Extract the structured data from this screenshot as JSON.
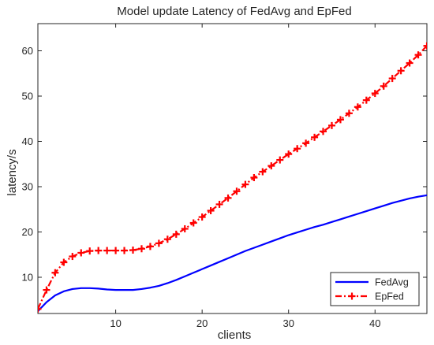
{
  "chart_data": {
    "type": "line",
    "title": "Model update Latency of FedAvg and EpFed",
    "xlabel": "clients",
    "ylabel": "latency/s",
    "xlim": [
      1,
      46
    ],
    "ylim": [
      2,
      66
    ],
    "xticks": [
      10,
      20,
      30,
      40
    ],
    "yticks": [
      10,
      20,
      30,
      40,
      50,
      60
    ],
    "grid": false,
    "legend_position": "bottom-right",
    "x": [
      1,
      2,
      3,
      4,
      5,
      6,
      7,
      8,
      9,
      10,
      11,
      12,
      13,
      14,
      15,
      16,
      17,
      18,
      19,
      20,
      21,
      22,
      23,
      24,
      25,
      26,
      27,
      28,
      29,
      30,
      31,
      32,
      33,
      34,
      35,
      36,
      37,
      38,
      39,
      40,
      41,
      42,
      43,
      44,
      45,
      46
    ],
    "series": [
      {
        "name": "FedAvg",
        "color": "#0000ff",
        "style": "solid",
        "marker": "none",
        "values": [
          2.5,
          4.5,
          6.0,
          6.9,
          7.4,
          7.6,
          7.6,
          7.5,
          7.3,
          7.2,
          7.2,
          7.2,
          7.4,
          7.7,
          8.1,
          8.7,
          9.4,
          10.2,
          11.0,
          11.8,
          12.6,
          13.4,
          14.2,
          15.0,
          15.8,
          16.5,
          17.2,
          17.9,
          18.6,
          19.3,
          19.9,
          20.5,
          21.1,
          21.6,
          22.2,
          22.8,
          23.4,
          24.0,
          24.6,
          25.2,
          25.8,
          26.4,
          26.9,
          27.4,
          27.8,
          28.1
        ]
      },
      {
        "name": "EpFed",
        "color": "#ff0000",
        "style": "dash-dot",
        "marker": "plus",
        "values": [
          3.0,
          7.2,
          11.0,
          13.3,
          14.6,
          15.4,
          15.8,
          15.9,
          15.9,
          15.9,
          15.9,
          16.0,
          16.3,
          16.8,
          17.5,
          18.4,
          19.5,
          20.7,
          22.0,
          23.3,
          24.7,
          26.1,
          27.5,
          29.0,
          30.5,
          32.0,
          33.3,
          34.6,
          35.9,
          37.2,
          38.4,
          39.6,
          40.9,
          42.2,
          43.5,
          44.8,
          46.2,
          47.6,
          49.1,
          50.6,
          52.2,
          53.9,
          55.6,
          57.3,
          59.1,
          61.1
        ]
      }
    ]
  }
}
